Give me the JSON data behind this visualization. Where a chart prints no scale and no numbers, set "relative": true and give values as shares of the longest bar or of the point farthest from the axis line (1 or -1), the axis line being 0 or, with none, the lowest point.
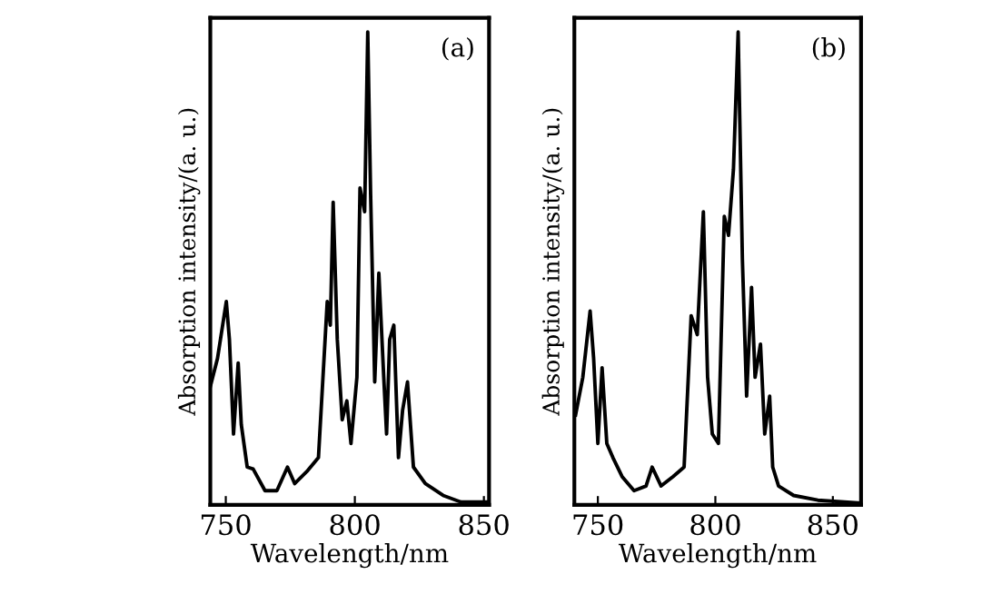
{
  "chart_data": [
    {
      "type": "line",
      "relative": true,
      "xlabel": "Wavelength/nm",
      "ylabel": "Absorption intensity/(a. u.)",
      "annotations": [
        "(a)"
      ],
      "xlim": [
        744,
        852
      ],
      "xticks": [
        750,
        800,
        850
      ],
      "grid": false,
      "legend": false,
      "tick_labels": "x",
      "series": [
        {
          "color": "#000000",
          "x": [
            744,
            746.8,
            750.2,
            751.4,
            753,
            754.8,
            756,
            758.3,
            760.6,
            765.2,
            769.8,
            773.9,
            776.7,
            781.3,
            785.9,
            789.3,
            790.5,
            791.6,
            793.2,
            795.1,
            796.9,
            798.5,
            800.8,
            802,
            803.8,
            805,
            806.1,
            807.7,
            809.3,
            811.2,
            812.3,
            813.5,
            815.1,
            816.9,
            818.5,
            820.4,
            822.7,
            827.3,
            834.2,
            841.1,
            851.8
          ],
          "values": [
            0.25,
            0.31,
            0.43,
            0.35,
            0.15,
            0.3,
            0.17,
            0.08,
            0.076,
            0.03,
            0.03,
            0.08,
            0.045,
            0.07,
            0.1,
            0.43,
            0.38,
            0.64,
            0.35,
            0.18,
            0.22,
            0.13,
            0.27,
            0.67,
            0.62,
            1.0,
            0.66,
            0.26,
            0.49,
            0.27,
            0.15,
            0.35,
            0.38,
            0.1,
            0.2,
            0.26,
            0.08,
            0.045,
            0.02,
            0.006,
            0.006
          ]
        }
      ]
    },
    {
      "type": "line",
      "relative": true,
      "xlabel": "Wavelength/nm",
      "ylabel": "Absorption intensity/(a. u.)",
      "annotations": [
        "(b)"
      ],
      "xlim": [
        740,
        862
      ],
      "xticks": [
        750,
        800,
        850
      ],
      "grid": false,
      "legend": false,
      "tick_labels": "x",
      "series": [
        {
          "color": "#000000",
          "x": [
            740.5,
            743.6,
            746.7,
            748.2,
            750,
            751.8,
            753.8,
            756.4,
            760.3,
            765.4,
            770.5,
            773.1,
            776.9,
            782,
            786.7,
            789.7,
            792.3,
            794.9,
            796.7,
            798.7,
            801.3,
            803.8,
            805.6,
            807.7,
            809.7,
            811.5,
            813.3,
            815.4,
            816.9,
            819.2,
            821,
            823.1,
            824.4,
            826.9,
            833.3,
            843.6,
            862
          ],
          "values": [
            0.19,
            0.27,
            0.41,
            0.31,
            0.13,
            0.29,
            0.13,
            0.1,
            0.06,
            0.03,
            0.04,
            0.08,
            0.04,
            0.06,
            0.08,
            0.4,
            0.36,
            0.62,
            0.27,
            0.15,
            0.13,
            0.61,
            0.57,
            0.71,
            1.0,
            0.52,
            0.23,
            0.46,
            0.27,
            0.34,
            0.15,
            0.23,
            0.08,
            0.04,
            0.02,
            0.01,
            0.004
          ]
        }
      ]
    }
  ]
}
